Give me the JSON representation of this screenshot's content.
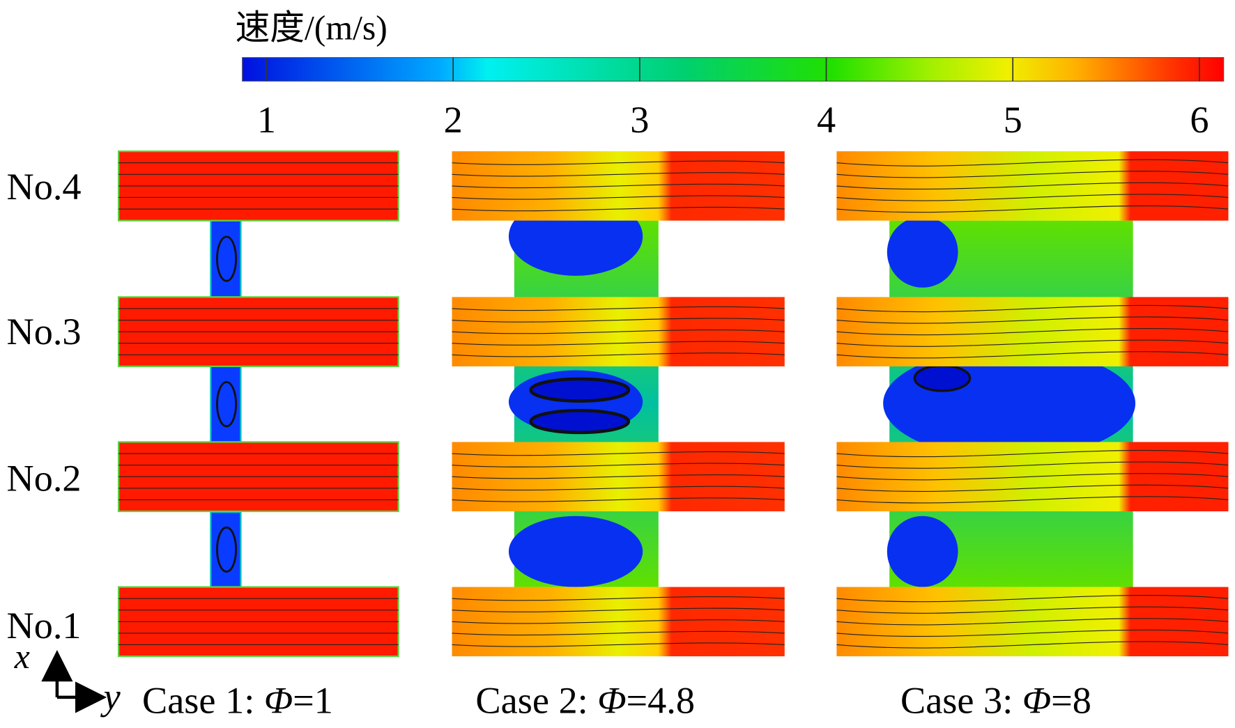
{
  "colorbar": {
    "title": "速度/(m/s)",
    "range": [
      0.87,
      6.13
    ],
    "ticks": [
      1,
      2,
      3,
      4,
      5,
      6
    ]
  },
  "rows": [
    "No.4",
    "No.3",
    "No.2",
    "No.1"
  ],
  "axes": {
    "x": "x",
    "y": "y"
  },
  "cases": [
    {
      "prefix": "Case 1: ",
      "symbol": "Φ",
      "suffix": "=1"
    },
    {
      "prefix": "Case 2: ",
      "symbol": "Φ",
      "suffix": "=4.8"
    },
    {
      "prefix": "Case 3: ",
      "symbol": "Φ",
      "suffix": "=8"
    }
  ]
}
